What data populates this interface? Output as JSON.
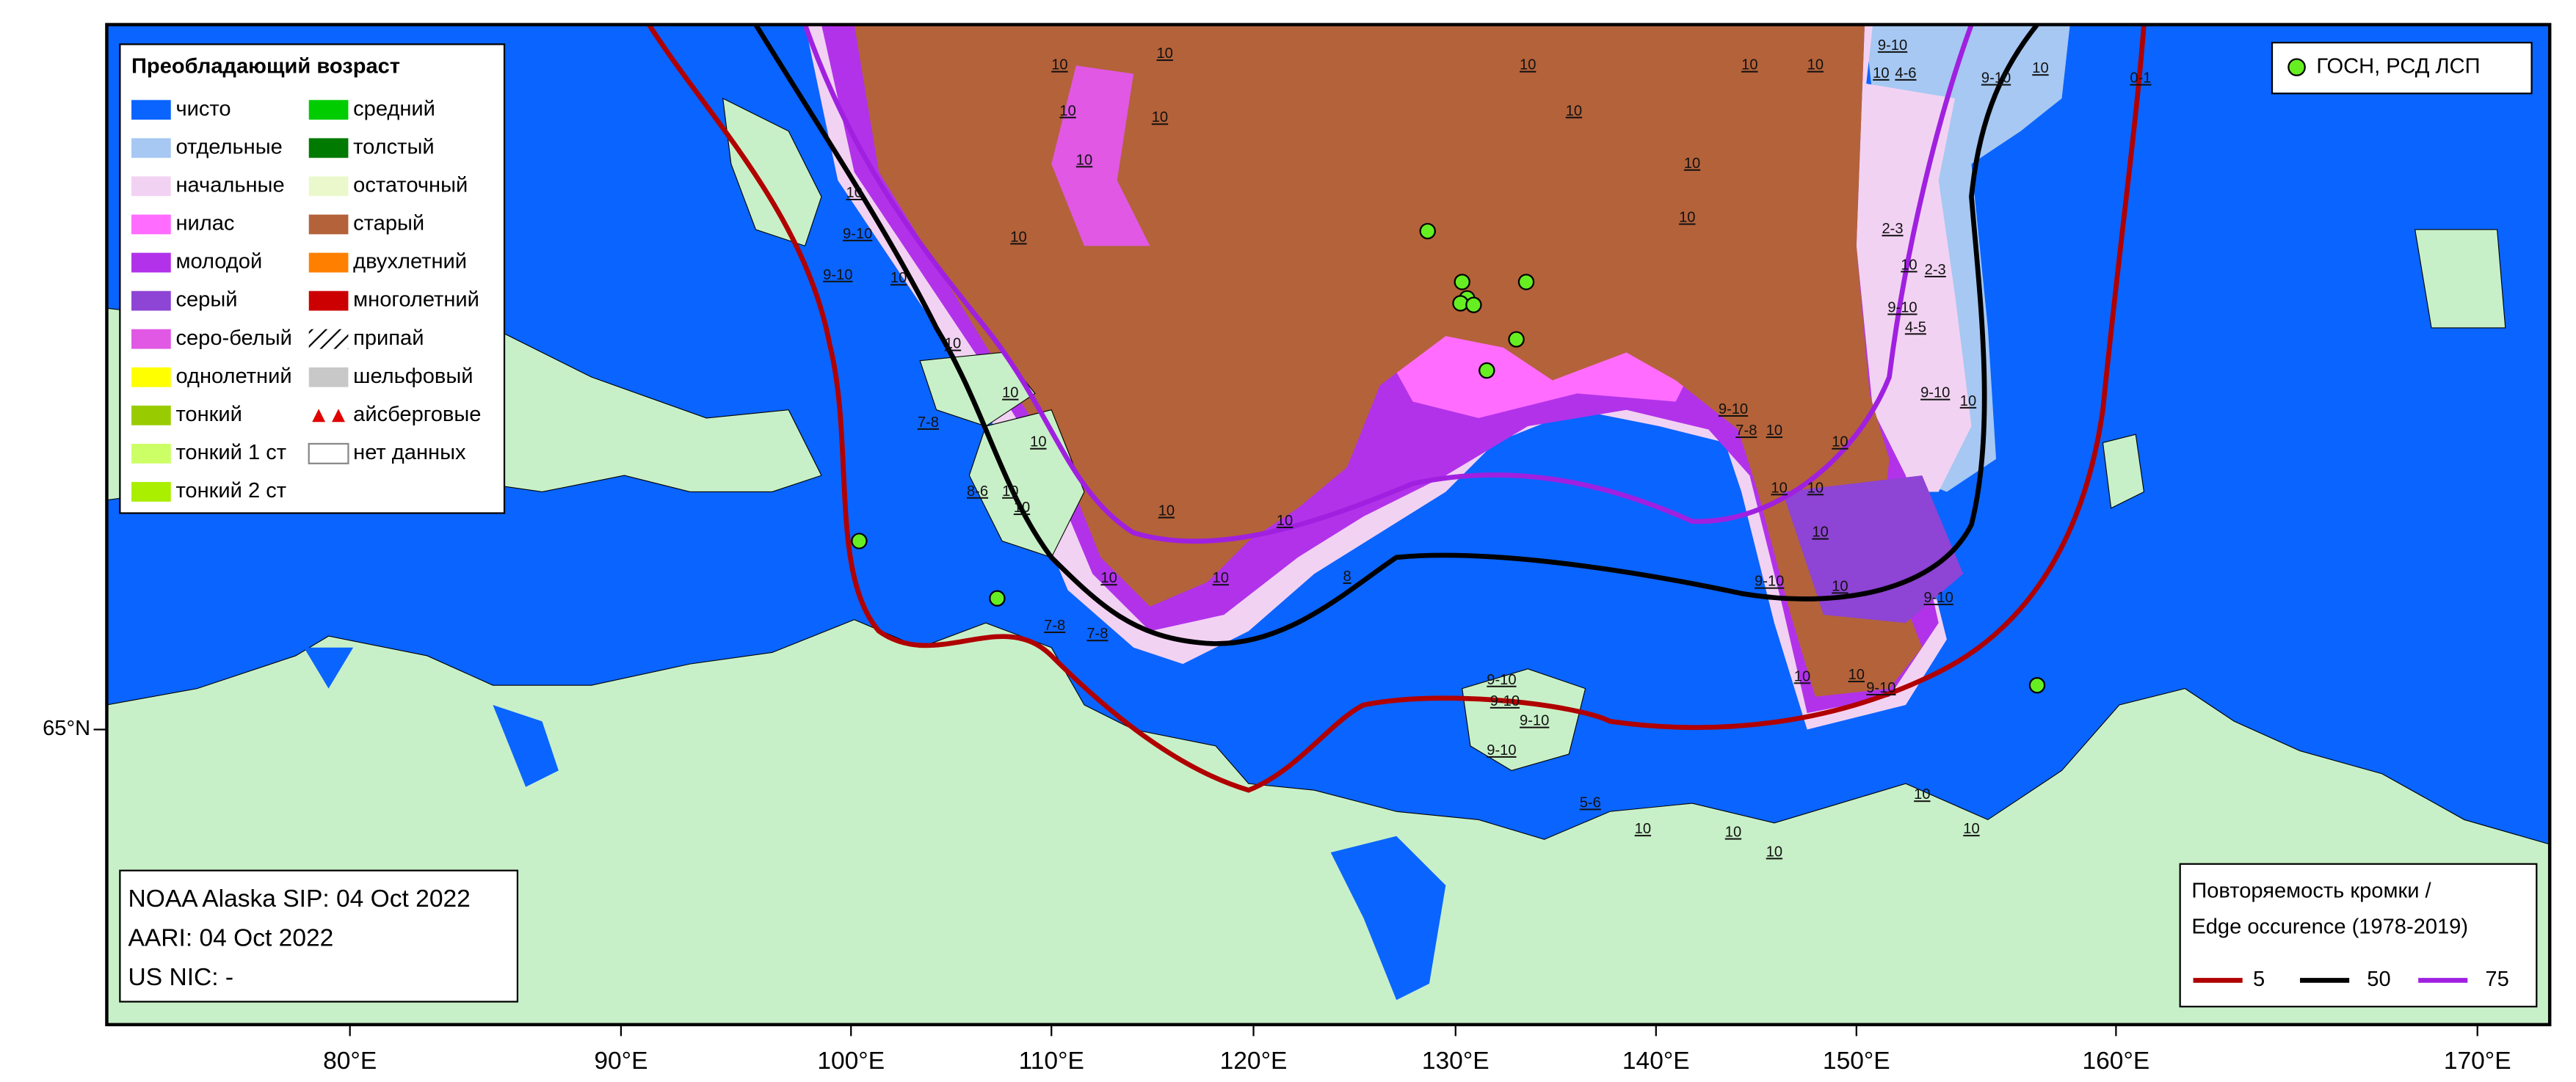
{
  "legend": {
    "title": "Преобладающий возраст",
    "items": [
      {
        "label": "чисто",
        "color": "#0a64ff"
      },
      {
        "label": "отдельные",
        "color": "#a6c8f2"
      },
      {
        "label": "начальные",
        "color": "#f2d2f2"
      },
      {
        "label": "нилас",
        "color": "#ff6cff"
      },
      {
        "label": "молодой",
        "color": "#b232ea"
      },
      {
        "label": "серый",
        "color": "#8e44d4"
      },
      {
        "label": "серо-белый",
        "color": "#e058e4"
      },
      {
        "label": "однолетний",
        "color": "#ffff00"
      },
      {
        "label": "тонкий",
        "color": "#99cc00"
      },
      {
        "label": "тонкий 1 ст",
        "color": "#ccff66"
      },
      {
        "label": "тонкий 2 ст",
        "color": "#aaee00"
      },
      {
        "label": "средний",
        "color": "#00cc00"
      },
      {
        "label": "толстый",
        "color": "#007a00"
      },
      {
        "label": "остаточный",
        "color": "#eaf8cc"
      },
      {
        "label": "старый",
        "color": "#b4623a"
      },
      {
        "label": "двухлетний",
        "color": "#ff8000"
      },
      {
        "label": "многолетний",
        "color": "#cc0000"
      },
      {
        "label": "припай",
        "color": "hatch"
      },
      {
        "label": "шельфовый",
        "color": "#c8c8c8"
      },
      {
        "label": "айсберговые",
        "color": "iceberg"
      },
      {
        "label": "нет данных",
        "color": "#ffffff"
      }
    ]
  },
  "station_legend": {
    "label": "ГОСН, РСД ЛСП",
    "color": "#66ee22"
  },
  "info_box": {
    "lines": [
      "NOAA Alaska SIP: 04 Oct 2022",
      "AARI: 04 Oct 2022",
      "US NIC: -"
    ]
  },
  "edge_legend": {
    "title_lines": [
      "Повторяемость кромки /",
      "Edge occurence (1978-2019)"
    ],
    "items": [
      {
        "label": "5",
        "color": "#b00000"
      },
      {
        "label": "50",
        "color": "#000000"
      },
      {
        "label": "75",
        "color": "#a020e0"
      }
    ]
  },
  "axis": {
    "x_labels": [
      "80°E",
      "90°E",
      "100°E",
      "110°E",
      "120°E",
      "130°E",
      "140°E",
      "150°E",
      "160°E",
      "170°E"
    ],
    "y_labels": [
      "65°N"
    ]
  },
  "ice_labels": [
    "10",
    "10",
    "10",
    "10",
    "10",
    "10",
    "10",
    "10",
    "10",
    "10",
    "10",
    "10",
    "10",
    "9-10",
    "9-10",
    "10",
    "9-10",
    "10",
    "4-6",
    "9-10",
    "10",
    "2-3",
    "10",
    "2-3",
    "9-10",
    "4-5",
    "9-10",
    "10",
    "9-10",
    "7-8",
    "10",
    "10",
    "10",
    "10",
    "10",
    "9-10",
    "10",
    "9-10",
    "10",
    "10",
    "9-10",
    "10",
    "10",
    "8",
    "10",
    "10",
    "7-8",
    "7-8",
    "9-10",
    "9-10",
    "9-10",
    "9-10",
    "10",
    "10",
    "10",
    "10",
    "10",
    "5-6",
    "10",
    "10",
    "7-8",
    "10",
    "10",
    "10",
    "8-6",
    "0-1"
  ]
}
